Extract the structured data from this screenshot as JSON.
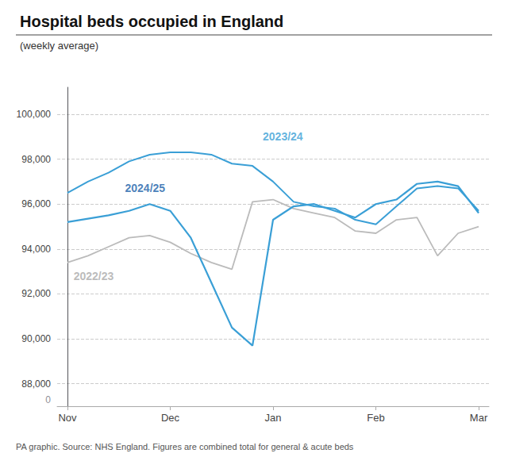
{
  "chart_data": {
    "type": "line",
    "title": "Hospital beds occupied in England",
    "subtitle": "(weekly average)",
    "footnote": "PA graphic. Source: NHS England. Figures are combined total for general & acute beds",
    "x": [
      0,
      1,
      2,
      3,
      4,
      5,
      6,
      7,
      8,
      9,
      10,
      11,
      12,
      13,
      14,
      15,
      16,
      17,
      18,
      19,
      20
    ],
    "xlim": [
      -0.5,
      20.5
    ],
    "xticks": [
      {
        "value": 0,
        "label": "Nov"
      },
      {
        "value": 5,
        "label": "Dec"
      },
      {
        "value": 10,
        "label": "Jan"
      },
      {
        "value": 15,
        "label": "Feb"
      },
      {
        "value": 20,
        "label": "Mar"
      }
    ],
    "ylim": [
      87000,
      101200
    ],
    "yticks": [
      {
        "value": 88000,
        "label": "88,000"
      },
      {
        "value": 90000,
        "label": "90,000"
      },
      {
        "value": 92000,
        "label": "92,000"
      },
      {
        "value": 94000,
        "label": "94,000"
      },
      {
        "value": 96000,
        "label": "96,000"
      },
      {
        "value": 98000,
        "label": "98,000"
      },
      {
        "value": 100000,
        "label": "100,000"
      }
    ],
    "grid": true,
    "series": [
      {
        "color": "#bbbbbb",
        "values": [
          93400,
          93700,
          94100,
          94500,
          94600,
          94300,
          93800,
          93400,
          93100,
          96100,
          96200,
          95800,
          95600,
          95400,
          94800,
          94700,
          95300,
          95400,
          93700,
          94700,
          95000
        ]
      },
      {
        "color": "#3a9fd6",
        "values": [
          96500,
          97000,
          97400,
          97900,
          98200,
          98300,
          98300,
          98200,
          97800,
          97700,
          97000,
          96100,
          95900,
          95800,
          95300,
          95100,
          95900,
          96700,
          96800,
          96700,
          95700
        ]
      },
      {
        "color": "#3a9fd6",
        "values": [
          95200,
          95350,
          95500,
          95700,
          96000,
          95700,
          94500,
          92500,
          90500,
          89700,
          95300,
          95900,
          96000,
          95700,
          95400,
          96000,
          96200,
          96900,
          97000,
          96800,
          95600
        ]
      }
    ],
    "annotations": [
      {
        "text": "2024/25",
        "x": 2.8,
        "y": 96700,
        "color": "#1a5fa8"
      },
      {
        "text": "2023/24",
        "x": 9.5,
        "y": 99000,
        "color": "#3a9fd6"
      },
      {
        "text": "2022/23",
        "x": 0.3,
        "y": 92800,
        "color": "#aaaaaa"
      },
      {
        "text": "0",
        "x": -0.5,
        "y": 87300
      }
    ]
  }
}
